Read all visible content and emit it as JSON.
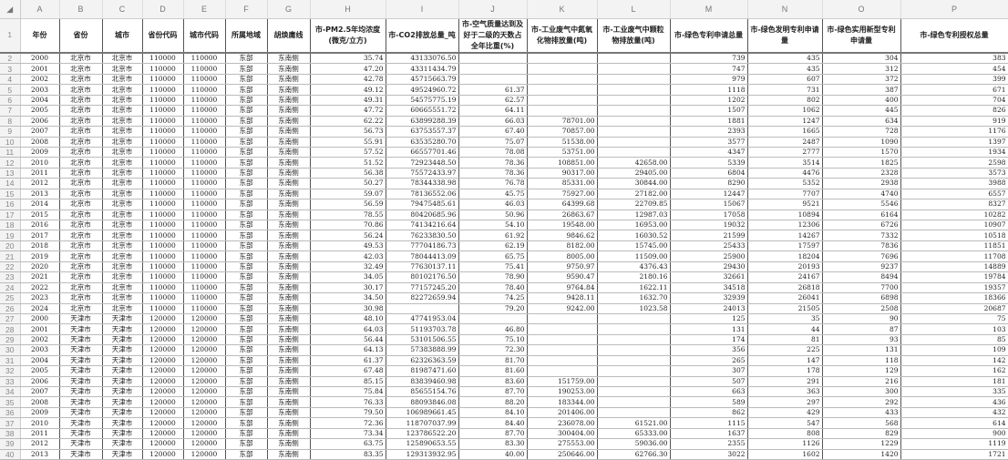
{
  "column_letters": [
    "A",
    "B",
    "C",
    "D",
    "E",
    "F",
    "G",
    "H",
    "I",
    "J",
    "K",
    "L",
    "M",
    "N",
    "O",
    "P"
  ],
  "headers": [
    "年份",
    "省份",
    "城市",
    "省份代码",
    "城市代码",
    "所属地域",
    "胡焕庸线",
    "市-PM2.5年均浓度(微克/立方)",
    "市-CO2排放总量_吨",
    "市-空气质量达到及好于二级的天数占全年比重(%)",
    "市-工业废气中氮氧化物排放量(吨)",
    "市-工业废气中颗粒物排放量(吨)",
    "市-绿色专利申请总量",
    "市-绿色发明专利申请量",
    "市-绿色实用新型专利申请量",
    "市-绿色专利授权总量"
  ],
  "rows": [
    [
      "2000",
      "北京市",
      "北京市",
      "110000",
      "110000",
      "东部",
      "东南侧",
      "35.74",
      "43133076.50",
      "",
      "",
      "",
      "739",
      "435",
      "304",
      "383"
    ],
    [
      "2001",
      "北京市",
      "北京市",
      "110000",
      "110000",
      "东部",
      "东南侧",
      "47.20",
      "43311434.79",
      "",
      "",
      "",
      "747",
      "435",
      "312",
      "454"
    ],
    [
      "2002",
      "北京市",
      "北京市",
      "110000",
      "110000",
      "东部",
      "东南侧",
      "42.78",
      "45715663.79",
      "",
      "",
      "",
      "979",
      "607",
      "372",
      "399"
    ],
    [
      "2003",
      "北京市",
      "北京市",
      "110000",
      "110000",
      "东部",
      "东南侧",
      "49.12",
      "49524960.72",
      "61.37",
      "",
      "",
      "1118",
      "731",
      "387",
      "671"
    ],
    [
      "2004",
      "北京市",
      "北京市",
      "110000",
      "110000",
      "东部",
      "东南侧",
      "49.31",
      "54575775.19",
      "62.57",
      "",
      "",
      "1202",
      "802",
      "400",
      "704"
    ],
    [
      "2005",
      "北京市",
      "北京市",
      "110000",
      "110000",
      "东部",
      "东南侧",
      "47.72",
      "60665551.72",
      "64.11",
      "",
      "",
      "1507",
      "1062",
      "445",
      "826"
    ],
    [
      "2006",
      "北京市",
      "北京市",
      "110000",
      "110000",
      "东部",
      "东南侧",
      "62.22",
      "63899288.39",
      "66.03",
      "78701.00",
      "",
      "1881",
      "1247",
      "634",
      "919"
    ],
    [
      "2007",
      "北京市",
      "北京市",
      "110000",
      "110000",
      "东部",
      "东南侧",
      "56.73",
      "63753557.37",
      "67.40",
      "70857.00",
      "",
      "2393",
      "1665",
      "728",
      "1176"
    ],
    [
      "2008",
      "北京市",
      "北京市",
      "110000",
      "110000",
      "东部",
      "东南侧",
      "55.91",
      "63535280.70",
      "75.07",
      "51538.00",
      "",
      "3577",
      "2487",
      "1090",
      "1397"
    ],
    [
      "2009",
      "北京市",
      "北京市",
      "110000",
      "110000",
      "东部",
      "东南侧",
      "57.52",
      "66557701.46",
      "78.08",
      "53751.00",
      "",
      "4347",
      "2777",
      "1570",
      "1934"
    ],
    [
      "2010",
      "北京市",
      "北京市",
      "110000",
      "110000",
      "东部",
      "东南侧",
      "51.52",
      "72923448.50",
      "78.36",
      "108851.00",
      "42658.00",
      "5339",
      "3514",
      "1825",
      "2598"
    ],
    [
      "2011",
      "北京市",
      "北京市",
      "110000",
      "110000",
      "东部",
      "东南侧",
      "56.38",
      "75572433.97",
      "78.36",
      "90317.00",
      "29405.00",
      "6804",
      "4476",
      "2328",
      "3573"
    ],
    [
      "2012",
      "北京市",
      "北京市",
      "110000",
      "110000",
      "东部",
      "东南侧",
      "50.27",
      "78344338.98",
      "76.78",
      "85331.00",
      "30844.00",
      "8290",
      "5352",
      "2938",
      "3988"
    ],
    [
      "2013",
      "北京市",
      "北京市",
      "110000",
      "110000",
      "东部",
      "东南侧",
      "59.07",
      "78136552.06",
      "45.75",
      "75927.00",
      "27182.00",
      "12447",
      "7707",
      "4740",
      "6557"
    ],
    [
      "2014",
      "北京市",
      "北京市",
      "110000",
      "110000",
      "东部",
      "东南侧",
      "56.59",
      "79475485.61",
      "46.03",
      "64399.68",
      "22709.85",
      "15067",
      "9521",
      "5546",
      "8327"
    ],
    [
      "2015",
      "北京市",
      "北京市",
      "110000",
      "110000",
      "东部",
      "东南侧",
      "78.55",
      "80420685.96",
      "50.96",
      "26863.67",
      "12987.03",
      "17058",
      "10894",
      "6164",
      "10282"
    ],
    [
      "2016",
      "北京市",
      "北京市",
      "110000",
      "110000",
      "东部",
      "东南侧",
      "70.86",
      "74134216.64",
      "54.10",
      "19548.00",
      "16953.00",
      "19032",
      "12306",
      "6726",
      "10907"
    ],
    [
      "2017",
      "北京市",
      "北京市",
      "110000",
      "110000",
      "东部",
      "东南侧",
      "56.24",
      "76233830.50",
      "61.92",
      "9846.62",
      "16030.52",
      "21599",
      "14267",
      "7332",
      "10518"
    ],
    [
      "2018",
      "北京市",
      "北京市",
      "110000",
      "110000",
      "东部",
      "东南侧",
      "49.53",
      "77704186.73",
      "62.19",
      "8182.00",
      "15745.00",
      "25433",
      "17597",
      "7836",
      "11851"
    ],
    [
      "2019",
      "北京市",
      "北京市",
      "110000",
      "110000",
      "东部",
      "东南侧",
      "42.03",
      "78044413.09",
      "65.75",
      "8005.00",
      "11509.00",
      "25900",
      "18204",
      "7696",
      "11708"
    ],
    [
      "2020",
      "北京市",
      "北京市",
      "110000",
      "110000",
      "东部",
      "东南侧",
      "32.49",
      "77630137.11",
      "75.41",
      "9750.97",
      "4376.43",
      "29430",
      "20193",
      "9237",
      "14889"
    ],
    [
      "2021",
      "北京市",
      "北京市",
      "110000",
      "110000",
      "东部",
      "东南侧",
      "34.05",
      "80102176.50",
      "78.90",
      "9590.47",
      "2180.16",
      "32661",
      "24167",
      "8494",
      "19784"
    ],
    [
      "2022",
      "北京市",
      "北京市",
      "110000",
      "110000",
      "东部",
      "东南侧",
      "30.17",
      "77157245.20",
      "78.40",
      "9764.84",
      "1622.11",
      "34518",
      "26818",
      "7700",
      "19357"
    ],
    [
      "2023",
      "北京市",
      "北京市",
      "110000",
      "110000",
      "东部",
      "东南侧",
      "34.50",
      "82272659.94",
      "74.25",
      "9428.11",
      "1632.70",
      "32939",
      "26041",
      "6898",
      "18366"
    ],
    [
      "2024",
      "北京市",
      "北京市",
      "110000",
      "110000",
      "东部",
      "东南侧",
      "30.98",
      "",
      "79.20",
      "9242.00",
      "1023.58",
      "24013",
      "21505",
      "2508",
      "20687"
    ],
    [
      "2000",
      "天津市",
      "天津市",
      "120000",
      "120000",
      "东部",
      "东南侧",
      "48.10",
      "47741953.04",
      "",
      "",
      "",
      "125",
      "35",
      "90",
      "75"
    ],
    [
      "2001",
      "天津市",
      "天津市",
      "120000",
      "120000",
      "东部",
      "东南侧",
      "64.03",
      "51193703.78",
      "46.80",
      "",
      "",
      "131",
      "44",
      "87",
      "103"
    ],
    [
      "2002",
      "天津市",
      "天津市",
      "120000",
      "120000",
      "东部",
      "东南侧",
      "56.44",
      "53101506.55",
      "75.10",
      "",
      "",
      "174",
      "81",
      "93",
      "85"
    ],
    [
      "2003",
      "天津市",
      "天津市",
      "120000",
      "120000",
      "东部",
      "东南侧",
      "64.13",
      "57383888.99",
      "72.30",
      "",
      "",
      "356",
      "225",
      "131",
      "109"
    ],
    [
      "2004",
      "天津市",
      "天津市",
      "120000",
      "120000",
      "东部",
      "东南侧",
      "61.37",
      "62326363.59",
      "81.70",
      "",
      "",
      "265",
      "147",
      "118",
      "142"
    ],
    [
      "2005",
      "天津市",
      "天津市",
      "120000",
      "120000",
      "东部",
      "东南侧",
      "67.48",
      "81987471.60",
      "81.60",
      "",
      "",
      "307",
      "178",
      "129",
      "162"
    ],
    [
      "2006",
      "天津市",
      "天津市",
      "120000",
      "120000",
      "东部",
      "东南侧",
      "85.15",
      "83839460.98",
      "83.60",
      "151759.00",
      "",
      "507",
      "291",
      "216",
      "181"
    ],
    [
      "2007",
      "天津市",
      "天津市",
      "120000",
      "120000",
      "东部",
      "东南侧",
      "75.84",
      "85655154.76",
      "87.70",
      "190253.00",
      "",
      "663",
      "363",
      "300",
      "335"
    ],
    [
      "2008",
      "天津市",
      "天津市",
      "120000",
      "120000",
      "东部",
      "东南侧",
      "76.33",
      "88093846.08",
      "88.20",
      "183344.00",
      "",
      "589",
      "297",
      "292",
      "436"
    ],
    [
      "2009",
      "天津市",
      "天津市",
      "120000",
      "120000",
      "东部",
      "东南侧",
      "79.50",
      "106989661.45",
      "84.10",
      "201406.00",
      "",
      "862",
      "429",
      "433",
      "432"
    ],
    [
      "2010",
      "天津市",
      "天津市",
      "120000",
      "120000",
      "东部",
      "东南侧",
      "72.36",
      "118707037.99",
      "84.40",
      "236078.00",
      "61521.00",
      "1115",
      "547",
      "568",
      "614"
    ],
    [
      "2011",
      "天津市",
      "天津市",
      "120000",
      "120000",
      "东部",
      "东南侧",
      "73.34",
      "123786522.20",
      "87.70",
      "300404.00",
      "65333.00",
      "1637",
      "808",
      "829",
      "900"
    ],
    [
      "2012",
      "天津市",
      "天津市",
      "120000",
      "120000",
      "东部",
      "东南侧",
      "63.75",
      "125890653.55",
      "83.30",
      "275553.00",
      "59036.00",
      "2355",
      "1126",
      "1229",
      "1119"
    ],
    [
      "2013",
      "天津市",
      "天津市",
      "120000",
      "120000",
      "东部",
      "东南侧",
      "83.35",
      "129313932.95",
      "40.00",
      "250646.00",
      "62766.30",
      "3022",
      "1602",
      "1420",
      "1721"
    ]
  ]
}
